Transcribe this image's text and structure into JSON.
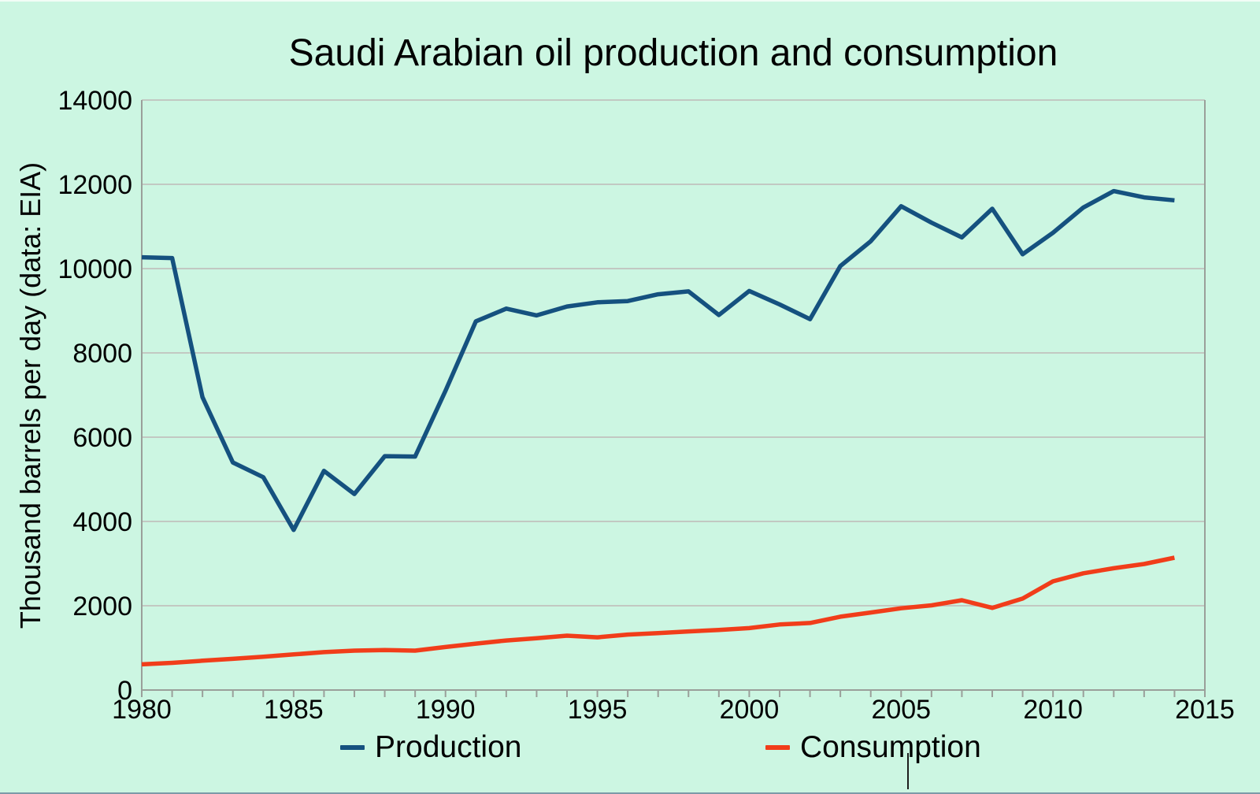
{
  "title": "Saudi Arabian oil production and consumption",
  "y_axis_label": "Thousand barrels per day (data: EIA)",
  "legend": {
    "production": "Production",
    "consumption": "Consumption"
  },
  "colors": {
    "background": "#ccf6e2",
    "production": "#15517f",
    "consumption": "#f13d1a",
    "gridline": "#c2c8c2",
    "axis": "#9a9f9a",
    "text": "#000000"
  },
  "chart_data": {
    "type": "line",
    "x": [
      1980,
      1981,
      1982,
      1983,
      1984,
      1985,
      1986,
      1987,
      1988,
      1989,
      1990,
      1991,
      1992,
      1993,
      1994,
      1995,
      1996,
      1997,
      1998,
      1999,
      2000,
      2001,
      2002,
      2003,
      2004,
      2005,
      2006,
      2007,
      2008,
      2009,
      2010,
      2011,
      2012,
      2013,
      2014
    ],
    "series": [
      {
        "name": "Production",
        "color_key": "production",
        "values": [
          10270,
          10250,
          6950,
          5400,
          5050,
          3800,
          5200,
          4650,
          5550,
          5540,
          7100,
          8750,
          9050,
          8890,
          9100,
          9200,
          9230,
          9390,
          9460,
          8900,
          9470,
          9150,
          8800,
          10060,
          10650,
          11480,
          11090,
          10740,
          11420,
          10340,
          10850,
          11450,
          11840,
          11690,
          11620
        ]
      },
      {
        "name": "Consumption",
        "color_key": "consumption",
        "values": [
          610,
          645,
          695,
          740,
          790,
          845,
          900,
          935,
          950,
          935,
          1020,
          1100,
          1175,
          1230,
          1290,
          1250,
          1315,
          1350,
          1390,
          1425,
          1470,
          1555,
          1590,
          1740,
          1840,
          1940,
          2010,
          2130,
          1950,
          2170,
          2580,
          2770,
          2890,
          2990,
          3140
        ]
      }
    ],
    "title": "Saudi Arabian oil production and consumption",
    "xlabel": "",
    "ylabel": "Thousand barrels per day (data: EIA)",
    "xlim": [
      1980,
      2015
    ],
    "ylim": [
      0,
      14000
    ],
    "x_ticks": [
      1980,
      1985,
      1990,
      1995,
      2000,
      2005,
      2010,
      2015
    ],
    "y_ticks": [
      0,
      2000,
      4000,
      6000,
      8000,
      10000,
      12000,
      14000
    ],
    "grid": "horizontal",
    "legend_position": "bottom"
  }
}
